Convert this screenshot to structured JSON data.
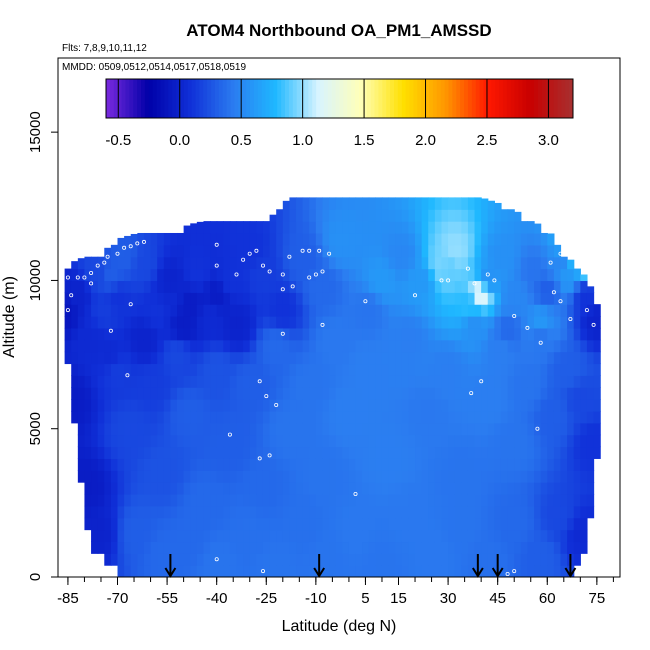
{
  "chart_data": {
    "type": "heatmap",
    "title": "ATOM4 Northbound OA_PM1_AMSSD",
    "subtitle_flights": "Flts: 7,8,9,10,11,12",
    "subtitle_dates": "MMDD: 0509,0512,0514,0517,0518,0519",
    "xlabel": "Latitude (deg N)",
    "ylabel": "Altitude (m)",
    "xlim": [
      -88,
      82
    ],
    "ylim": [
      0,
      17500
    ],
    "x_ticks": [
      -85,
      -70,
      -55,
      -40,
      -25,
      -10,
      5,
      15,
      30,
      45,
      60,
      75
    ],
    "x_minor_step": 5,
    "y_ticks": [
      0,
      5000,
      10000,
      15000
    ],
    "colorbar": {
      "range": [
        -0.6,
        3.2
      ],
      "ticks": [
        -0.5,
        0.0,
        0.5,
        1.0,
        1.5,
        2.0,
        2.5,
        3.0
      ],
      "tick_labels": [
        "-0.5",
        "0.0",
        "0.5",
        "1.0",
        "1.5",
        "2.0",
        "2.5",
        "3.0"
      ],
      "colors": [
        "#7b2ae0",
        "#0000a8",
        "#1030d8",
        "#2b7cf0",
        "#1fb8ff",
        "#d8f4ff",
        "#ffffb8",
        "#ffe000",
        "#ff9600",
        "#ff1800",
        "#c80000",
        "#a83030"
      ]
    },
    "value_field": {
      "description_free": true,
      "lat_range": [
        -86,
        76
      ],
      "top_altitude_by_lat": [
        [
          -86,
          10500
        ],
        [
          -80,
          10800
        ],
        [
          -74,
          11000
        ],
        [
          -70,
          11400
        ],
        [
          -64,
          11600
        ],
        [
          -58,
          11600
        ],
        [
          -52,
          11700
        ],
        [
          -48,
          11900
        ],
        [
          -44,
          12000
        ],
        [
          -38,
          12000
        ],
        [
          -30,
          12100
        ],
        [
          -24,
          12100
        ],
        [
          -18,
          12800
        ],
        [
          -10,
          12800
        ],
        [
          0,
          12800
        ],
        [
          10,
          12800
        ],
        [
          20,
          12800
        ],
        [
          28,
          12900
        ],
        [
          34,
          13000
        ],
        [
          40,
          12800
        ],
        [
          48,
          12500
        ],
        [
          56,
          12000
        ],
        [
          62,
          11500
        ],
        [
          66,
          10800
        ],
        [
          70,
          10400
        ],
        [
          74,
          9600
        ],
        [
          76,
          9000
        ]
      ],
      "bottom_altitude_by_lat": [
        [
          -86,
          8200
        ],
        [
          -82,
          4000
        ],
        [
          -78,
          1000
        ],
        [
          -72,
          400
        ],
        [
          -66,
          0
        ],
        [
          60,
          0
        ],
        [
          66,
          0
        ],
        [
          70,
          400
        ],
        [
          72,
          1000
        ],
        [
          74,
          3000
        ],
        [
          76,
          5000
        ]
      ],
      "points": [
        [
          -86,
          9000,
          -0.1
        ],
        [
          -82,
          9500,
          0.0
        ],
        [
          -78,
          8000,
          0.05
        ],
        [
          -74,
          9000,
          0.15
        ],
        [
          -72,
          10200,
          0.3
        ],
        [
          -70,
          9400,
          0.1
        ],
        [
          -62,
          10500,
          0.2
        ],
        [
          -58,
          9000,
          0.1
        ],
        [
          -54,
          10000,
          0.0
        ],
        [
          -50,
          8500,
          -0.05
        ],
        [
          -46,
          10300,
          0.1
        ],
        [
          -40,
          9500,
          -0.05
        ],
        [
          -34,
          8500,
          0.0
        ],
        [
          -30,
          11000,
          0.1
        ],
        [
          -26,
          10200,
          0.15
        ],
        [
          -20,
          9000,
          0.1
        ],
        [
          -14,
          10700,
          0.3
        ],
        [
          -8,
          9800,
          0.35
        ],
        [
          -2,
          11300,
          0.55
        ],
        [
          6,
          9000,
          0.4
        ],
        [
          10,
          10000,
          0.6
        ],
        [
          16,
          10800,
          0.5
        ],
        [
          22,
          10000,
          0.6
        ],
        [
          28,
          10500,
          0.95
        ],
        [
          32,
          11000,
          1.0
        ],
        [
          36,
          9200,
          0.8
        ],
        [
          42,
          10000,
          0.55
        ],
        [
          46,
          10700,
          0.55
        ],
        [
          50,
          9500,
          0.5
        ],
        [
          56,
          10300,
          0.4
        ],
        [
          60,
          9700,
          0.3
        ],
        [
          64,
          10500,
          0.5
        ],
        [
          68,
          11000,
          1.0
        ],
        [
          72,
          9500,
          0.1
        ],
        [
          75,
          8700,
          0.0
        ],
        [
          -84,
          6000,
          -0.05
        ],
        [
          -80,
          3000,
          -0.05
        ],
        [
          -76,
          1500,
          0.0
        ],
        [
          -70,
          7000,
          0.15
        ],
        [
          -66,
          5000,
          0.2
        ],
        [
          -60,
          6500,
          0.15
        ],
        [
          -56,
          3500,
          0.25
        ],
        [
          -52,
          7500,
          0.2
        ],
        [
          -48,
          5500,
          0.3
        ],
        [
          -44,
          2500,
          0.35
        ],
        [
          -40,
          7000,
          0.25
        ],
        [
          -36,
          4500,
          0.3
        ],
        [
          -30,
          6500,
          0.3
        ],
        [
          -26,
          3000,
          0.35
        ],
        [
          -22,
          7800,
          0.35
        ],
        [
          -18,
          5000,
          0.4
        ],
        [
          -12,
          6500,
          0.4
        ],
        [
          -8,
          3500,
          0.4
        ],
        [
          -4,
          8000,
          0.42
        ],
        [
          0,
          5500,
          0.45
        ],
        [
          6,
          7000,
          0.45
        ],
        [
          12,
          4000,
          0.45
        ],
        [
          18,
          8000,
          0.45
        ],
        [
          24,
          5500,
          0.42
        ],
        [
          30,
          7000,
          0.45
        ],
        [
          34,
          3500,
          0.4
        ],
        [
          38,
          8500,
          0.55
        ],
        [
          42,
          6000,
          0.45
        ],
        [
          46,
          7800,
          0.45
        ],
        [
          50,
          4500,
          0.4
        ],
        [
          54,
          6500,
          0.4
        ],
        [
          58,
          8200,
          0.4
        ],
        [
          62,
          5500,
          0.3
        ],
        [
          66,
          7000,
          0.3
        ],
        [
          70,
          6000,
          0.2
        ],
        [
          74,
          4500,
          0.1
        ],
        [
          -64,
          1500,
          0.3
        ],
        [
          -56,
          800,
          0.35
        ],
        [
          -48,
          1200,
          0.35
        ],
        [
          -40,
          500,
          0.4
        ],
        [
          -30,
          1500,
          0.38
        ],
        [
          -22,
          400,
          0.4
        ],
        [
          -14,
          1800,
          0.38
        ],
        [
          -6,
          700,
          0.4
        ],
        [
          2,
          1500,
          0.42
        ],
        [
          10,
          500,
          0.4
        ],
        [
          18,
          2000,
          0.42
        ],
        [
          26,
          800,
          0.42
        ],
        [
          34,
          1600,
          0.4
        ],
        [
          42,
          600,
          0.38
        ],
        [
          50,
          1800,
          0.35
        ],
        [
          58,
          700,
          0.3
        ],
        [
          64,
          2000,
          0.2
        ],
        [
          70,
          1500,
          0.05
        ],
        [
          40,
          9600,
          1.2
        ],
        [
          30,
          10400,
          0.9
        ],
        [
          72,
          10600,
          1.0
        ],
        [
          66,
          10200,
          0.6
        ],
        [
          -68,
          10800,
          0.3
        ],
        [
          -76,
          10300,
          0.2
        ],
        [
          58,
          8600,
          0.6
        ],
        [
          48,
          8300,
          0.35
        ],
        [
          -72,
          7500,
          0.05
        ],
        [
          -62,
          8000,
          0.0
        ],
        [
          -54,
          9400,
          0.05
        ],
        [
          -48,
          9200,
          -0.05
        ],
        [
          -42,
          8800,
          0.05
        ],
        [
          -36,
          10000,
          0.1
        ]
      ]
    },
    "arrow_latitudes": [
      -54,
      -9,
      39,
      45,
      67
    ],
    "markers": [
      [
        -85,
        10100
      ],
      [
        -82,
        10100
      ],
      [
        -80,
        10100
      ],
      [
        -78,
        10250
      ],
      [
        -76,
        10500
      ],
      [
        -74,
        10600
      ],
      [
        -73,
        10800
      ],
      [
        -70,
        10900
      ],
      [
        -68,
        11100
      ],
      [
        -66,
        11150
      ],
      [
        -64,
        11250
      ],
      [
        -62,
        11300
      ],
      [
        -66,
        9200
      ],
      [
        -72,
        8300
      ],
      [
        -67,
        6800
      ],
      [
        -78,
        9900
      ],
      [
        -84,
        9500
      ],
      [
        -85,
        9000
      ],
      [
        -40,
        10500
      ],
      [
        -34,
        10200
      ],
      [
        -32,
        10700
      ],
      [
        -30,
        10900
      ],
      [
        -28,
        11000
      ],
      [
        -26,
        10500
      ],
      [
        -24,
        10300
      ],
      [
        -20,
        10200
      ],
      [
        -18,
        10800
      ],
      [
        -14,
        11000
      ],
      [
        -12,
        11000
      ],
      [
        -9,
        11000
      ],
      [
        -6,
        10900
      ],
      [
        -17,
        9800
      ],
      [
        -12,
        10100
      ],
      [
        -10,
        10200
      ],
      [
        -8,
        10300
      ],
      [
        -20,
        9700
      ],
      [
        -27,
        6600
      ],
      [
        -25,
        6100
      ],
      [
        -22,
        5800
      ],
      [
        -24,
        4100
      ],
      [
        -27,
        4000
      ],
      [
        -36,
        4800
      ],
      [
        2,
        2800
      ],
      [
        -8,
        8500
      ],
      [
        -20,
        8200
      ],
      [
        -40,
        11200
      ],
      [
        5,
        9300
      ],
      [
        20,
        9500
      ],
      [
        28,
        10000
      ],
      [
        30,
        10000
      ],
      [
        36,
        10400
      ],
      [
        38,
        9900
      ],
      [
        42,
        10200
      ],
      [
        44,
        10000
      ],
      [
        50,
        8800
      ],
      [
        54,
        8400
      ],
      [
        40,
        6600
      ],
      [
        37,
        6200
      ],
      [
        57,
        5000
      ],
      [
        61,
        10600
      ],
      [
        64,
        10900
      ],
      [
        66,
        11100
      ],
      [
        68,
        11200
      ],
      [
        70,
        11300
      ],
      [
        72,
        11300
      ],
      [
        62,
        9600
      ],
      [
        64,
        9300
      ],
      [
        67,
        8700
      ],
      [
        72,
        9000
      ],
      [
        76,
        9700
      ],
      [
        74,
        8500
      ],
      [
        58,
        7900
      ],
      [
        -84,
        2000
      ],
      [
        -83,
        1200
      ],
      [
        -82,
        1700
      ],
      [
        -40,
        600
      ],
      [
        -26,
        200
      ],
      [
        48,
        100
      ],
      [
        50,
        200
      ]
    ]
  }
}
